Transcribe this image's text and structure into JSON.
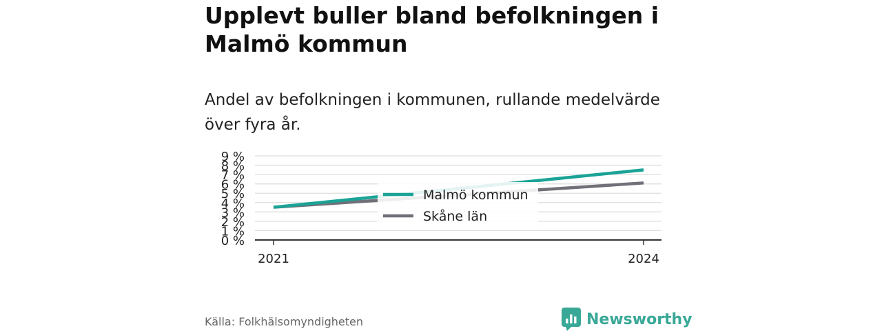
{
  "header": {
    "title": "Upplevt buller bland befolkningen i Malmö kommun",
    "subtitle": "Andel av befolkningen i kommunen, rullande medelvärde över fyra år."
  },
  "chart_data": {
    "type": "line",
    "x": [
      2021,
      2024
    ],
    "x_tick_labels": [
      "2021",
      "2024"
    ],
    "y_tick_labels": [
      "0 %",
      "1 %",
      "2 %",
      "3 %",
      "4 %",
      "5 %",
      "6 %",
      "7 %",
      "8 %",
      "9 %"
    ],
    "ylim": [
      0,
      9
    ],
    "grid": true,
    "legend_position": "center",
    "series": [
      {
        "name": "Malmö kommun",
        "color": "#1aa396",
        "values": [
          3.5,
          7.5
        ]
      },
      {
        "name": "Skåne län",
        "color": "#707078",
        "values": [
          3.5,
          6.1
        ]
      }
    ]
  },
  "footer": {
    "source": "Källa: Folkhälsomyndigheten",
    "brand": "Newsworthy",
    "brand_color": "#3aa897",
    "brand_icon": "newsworthy-logo-icon"
  }
}
